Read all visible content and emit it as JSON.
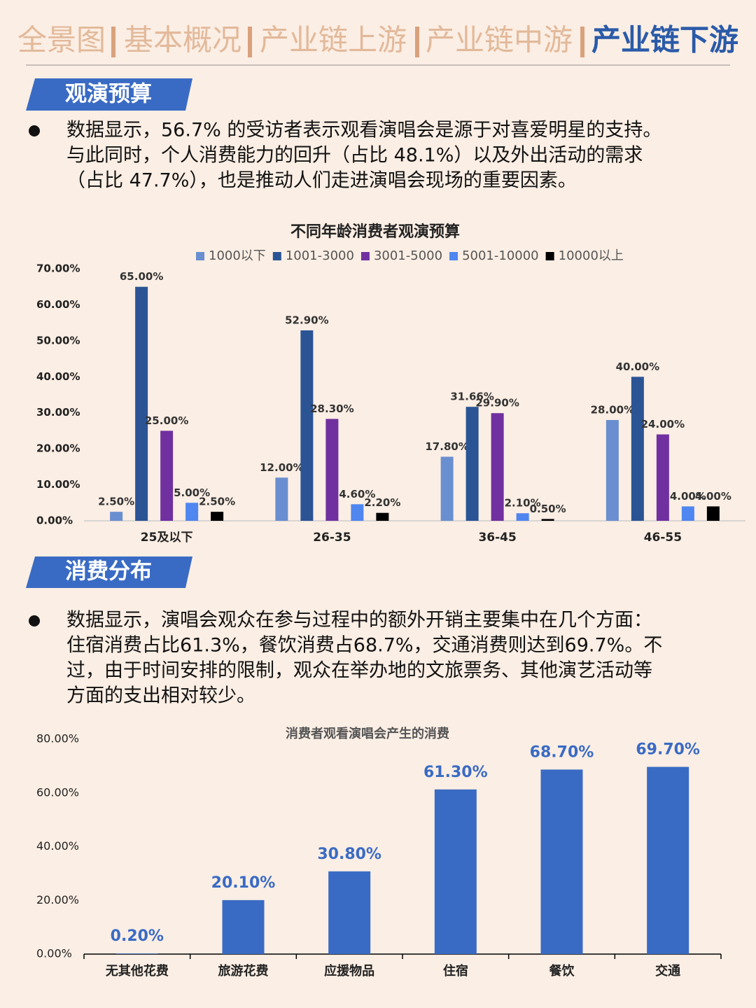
{
  "nav": {
    "tabs": [
      "全景图",
      "基本概况",
      "产业链上游",
      "产业链中游",
      "产业链下游"
    ],
    "active": 4
  },
  "sections": [
    {
      "title": "观演预算",
      "paragraph": [
        "数据显示，56.7% 的受访者表示观看演唱会是源于对喜爱明星的支持。",
        "与此同时，个人消费能力的回升（占比 48.1%）以及外出活动的需求",
        "（占比 47.7%），也是推动人们走进演唱会现场的重要因素。"
      ]
    },
    {
      "title": "消费分布",
      "paragraph": [
        "数据显示，演唱会观众在参与过程中的额外开销主要集中在几个方面：",
        "住宿消费占比61.3%，餐饮消费占68.7%，交通消费则达到69.7%。不",
        "过，由于时间安排的限制，观众在举办地的文旅票务、其他演艺活动等",
        "方面的支出相对较少。"
      ]
    }
  ],
  "chart_data": [
    {
      "type": "bar",
      "title": "不同年龄消费者观演预算",
      "legend": "top",
      "grid": false,
      "categories": [
        "25及以下",
        "26-35",
        "36-45",
        "46-55"
      ],
      "series": [
        {
          "name": "1000以下",
          "color": "#6a8fd0",
          "values": [
            2.5,
            12,
            17.8,
            28
          ],
          "value_labels": [
            "2.50%",
            "12.00%",
            "17.80%",
            "28.00%"
          ]
        },
        {
          "name": "1001-3000",
          "color": "#2b5495",
          "values": [
            65,
            52.9,
            31.66,
            40
          ],
          "value_labels": [
            "65.00%",
            "52.90%",
            "31.66%",
            "40.00%"
          ]
        },
        {
          "name": "3001-5000",
          "color": "#7030a0",
          "values": [
            25,
            28.3,
            29.9,
            24
          ],
          "value_labels": [
            "25.00%",
            "28.30%",
            "29.90%",
            "24.00%"
          ]
        },
        {
          "name": "5001-10000",
          "color": "#4f86f0",
          "values": [
            5,
            4.6,
            2.1,
            4
          ],
          "value_labels": [
            "5.00%",
            "4.60%",
            "2.10%",
            "4.00%"
          ]
        },
        {
          "name": "10000以上",
          "color": "#000000",
          "values": [
            2.5,
            2.2,
            0.5,
            4
          ],
          "value_labels": [
            "2.50%",
            "2.20%",
            "0.50%",
            "4.00%"
          ]
        }
      ],
      "ylim": [
        0,
        70
      ],
      "yticks": [
        {
          "value": 0,
          "label": "0.00%"
        },
        {
          "value": 10,
          "label": "10.00%"
        },
        {
          "value": 20,
          "label": "20.00%"
        },
        {
          "value": 30,
          "label": "30.00%"
        },
        {
          "value": 40,
          "label": "40.00%"
        },
        {
          "value": 50,
          "label": "50.00%"
        },
        {
          "value": 60,
          "label": "60.00%"
        },
        {
          "value": 70,
          "label": "70.00%"
        }
      ]
    },
    {
      "type": "bar",
      "title": "消费者观看演唱会产生的消费",
      "grid": false,
      "color": "#3a6bc4",
      "categories": [
        "无其他花费",
        "旅游花费",
        "应援物品",
        "住宿",
        "餐饮",
        "交通"
      ],
      "values": [
        0.2,
        20.1,
        30.8,
        61.3,
        68.7,
        69.7
      ],
      "value_labels": [
        "0.20%",
        "20.10%",
        "30.80%",
        "61.30%",
        "68.70%",
        "69.70%"
      ],
      "ylim": [
        0,
        80
      ],
      "yticks": [
        {
          "value": 0,
          "label": "0.00%"
        },
        {
          "value": 20,
          "label": "20.00%"
        },
        {
          "value": 40,
          "label": "40.00%"
        },
        {
          "value": 60,
          "label": "60.00%"
        },
        {
          "value": 80,
          "label": "80.00%"
        }
      ]
    }
  ]
}
